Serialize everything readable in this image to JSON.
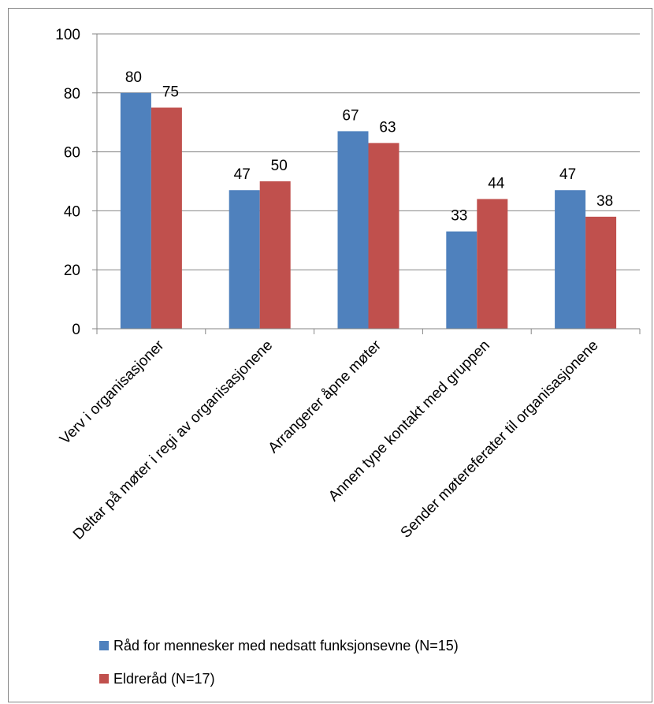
{
  "chart_data": {
    "type": "bar",
    "title": "",
    "xlabel": "",
    "ylabel": "",
    "ylim": [
      0,
      100
    ],
    "yticks": [
      0,
      20,
      40,
      60,
      80,
      100
    ],
    "grid": true,
    "legend_position": "bottom",
    "categories": [
      "Verv i  organisasjoner",
      "Deltar  på møter i regi av organisasjonene",
      "Arrangerer åpne møter",
      "Annen type kontakt med gruppen",
      "Sender møtereferater til organisasjonene"
    ],
    "series": [
      {
        "name": "Råd for mennesker med nedsatt funksjonsevne (N=15)",
        "values": [
          80,
          47,
          67,
          33,
          47
        ],
        "color": "#4F81BD"
      },
      {
        "name": "Eldreråd (N=17)",
        "values": [
          75,
          50,
          63,
          44,
          38
        ],
        "color": "#C0504D"
      }
    ]
  }
}
